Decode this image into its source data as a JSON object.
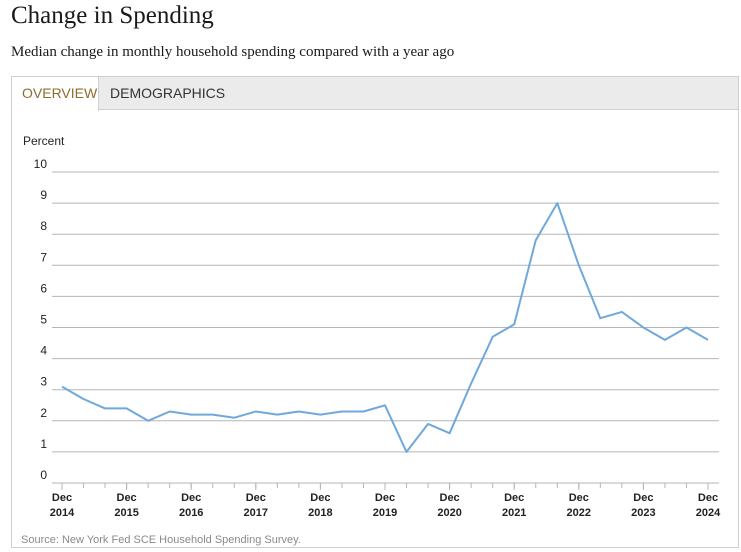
{
  "page": {
    "title": "Change in Spending",
    "subtitle": "Median change in monthly household spending compared with a year ago",
    "source": "Source: New York Fed SCE Household Spending Survey."
  },
  "tabs": [
    {
      "label": "OVERVIEW",
      "active": true
    },
    {
      "label": "DEMOGRAPHICS",
      "active": false
    }
  ],
  "colors": {
    "line": "#6fa9dc",
    "grid": "#b5b5b5",
    "active_tab_text": "#8c6d2c"
  },
  "chart_data": {
    "type": "line",
    "title": "Change in Spending",
    "ylabel": "Percent",
    "ylim": [
      0,
      10
    ],
    "yticks": [
      0,
      1,
      2,
      3,
      4,
      5,
      6,
      7,
      8,
      9,
      10
    ],
    "xlim": [
      "2014-12",
      "2024-12"
    ],
    "xticks": [
      {
        "date": "2014-12",
        "month": "Dec",
        "year": "2014"
      },
      {
        "date": "2015-12",
        "month": "Dec",
        "year": "2015"
      },
      {
        "date": "2016-12",
        "month": "Dec",
        "year": "2016"
      },
      {
        "date": "2017-12",
        "month": "Dec",
        "year": "2017"
      },
      {
        "date": "2018-12",
        "month": "Dec",
        "year": "2018"
      },
      {
        "date": "2019-12",
        "month": "Dec",
        "year": "2019"
      },
      {
        "date": "2020-12",
        "month": "Dec",
        "year": "2020"
      },
      {
        "date": "2021-12",
        "month": "Dec",
        "year": "2021"
      },
      {
        "date": "2022-12",
        "month": "Dec",
        "year": "2022"
      },
      {
        "date": "2023-12",
        "month": "Dec",
        "year": "2023"
      },
      {
        "date": "2024-12",
        "month": "Dec",
        "year": "2024"
      }
    ],
    "grid": true,
    "series": [
      {
        "x": [
          "2014-12",
          "2015-04",
          "2015-08",
          "2015-12",
          "2016-04",
          "2016-08",
          "2016-12",
          "2017-04",
          "2017-08",
          "2017-12",
          "2018-04",
          "2018-08",
          "2018-12",
          "2019-04",
          "2019-08",
          "2019-12",
          "2020-04",
          "2020-08",
          "2020-12",
          "2021-04",
          "2021-08",
          "2021-12",
          "2022-04",
          "2022-08",
          "2022-12",
          "2023-04",
          "2023-08",
          "2023-12",
          "2024-04",
          "2024-08",
          "2024-12"
        ],
        "values": [
          3.1,
          2.7,
          2.4,
          2.4,
          2.0,
          2.3,
          2.2,
          2.2,
          2.1,
          2.3,
          2.2,
          2.3,
          2.2,
          2.3,
          2.3,
          2.5,
          1.0,
          1.9,
          1.6,
          3.2,
          4.7,
          5.1,
          7.8,
          9.0,
          7.0,
          5.3,
          5.5,
          5.0,
          4.6,
          5.0,
          4.6
        ]
      }
    ]
  }
}
